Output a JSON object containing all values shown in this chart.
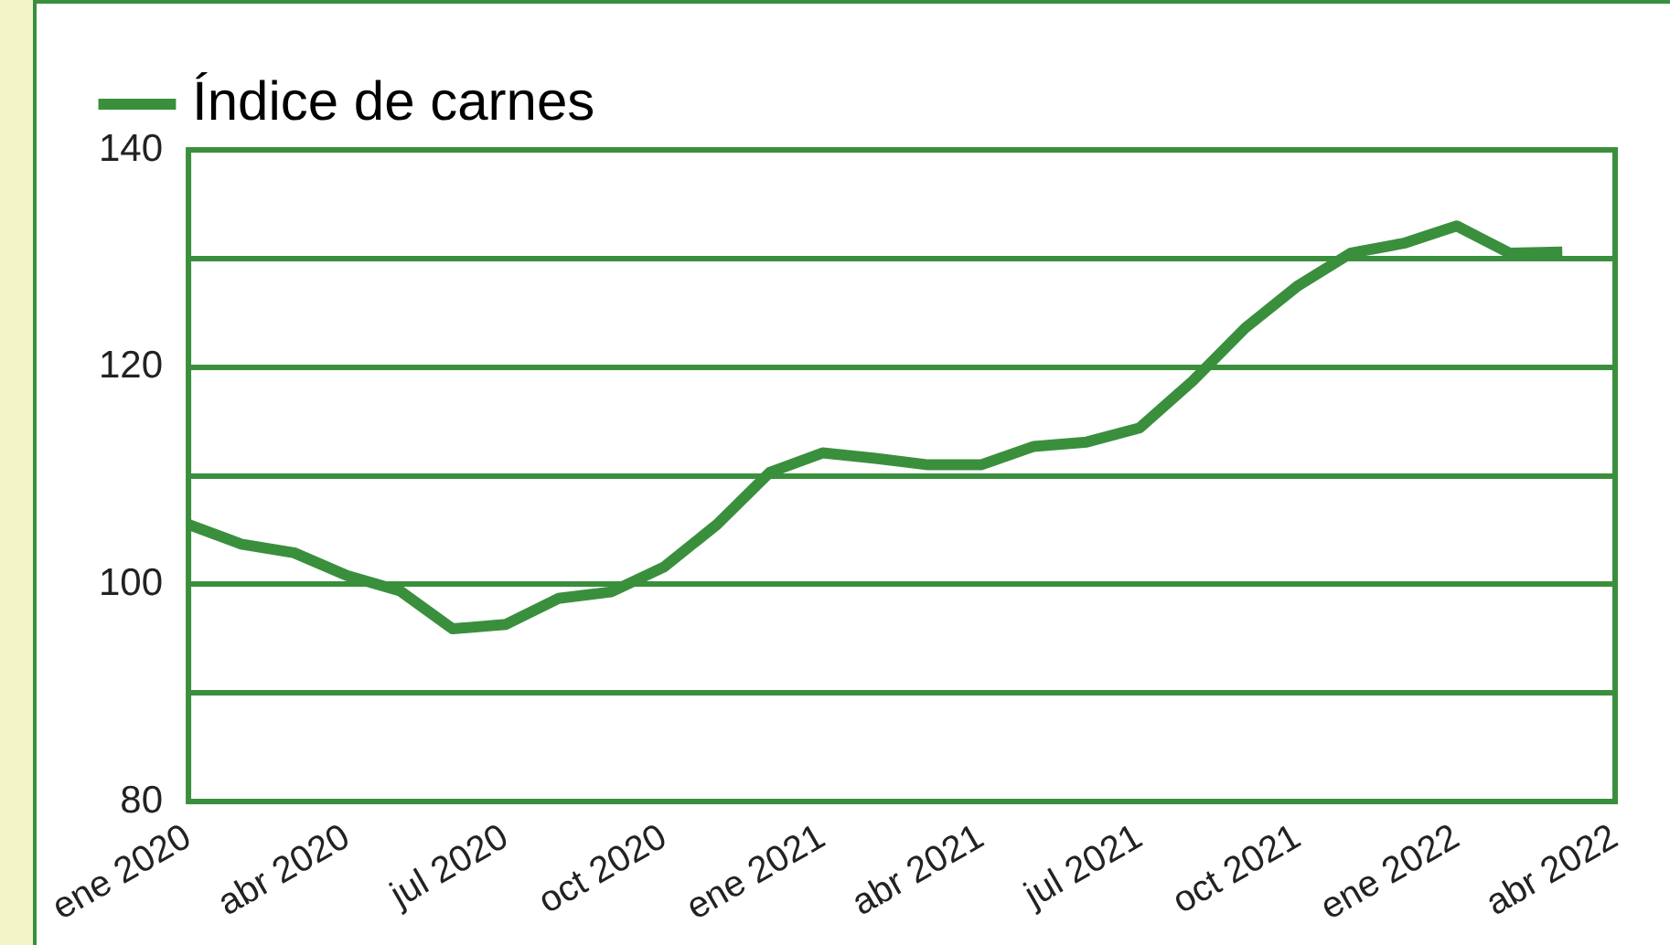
{
  "chart_data": {
    "type": "line",
    "categories": [
      "ene 2020",
      null,
      null,
      "abr 2020",
      null,
      null,
      "jul 2020",
      null,
      null,
      "oct 2020",
      null,
      null,
      "ene 2021",
      null,
      null,
      "abr 2021",
      null,
      null,
      "jul 2021",
      null,
      null,
      "oct 2021",
      null,
      null,
      "ene 2022",
      null,
      null,
      "abr 2022"
    ],
    "series": [
      {
        "name": "Índice de carnes",
        "color": "#3a8f3d",
        "values": [
          105.5,
          103.7,
          102.9,
          100.8,
          99.4,
          95.9,
          96.3,
          98.7,
          99.3,
          101.6,
          105.5,
          110.3,
          112.1,
          111.6,
          111.0,
          111.0,
          112.7,
          113.1,
          114.4,
          118.7,
          123.6,
          127.5,
          130.5,
          131.4,
          133.0,
          130.5,
          130.6,
          null
        ]
      }
    ],
    "ylim": [
      80,
      140
    ],
    "yticks": [
      80,
      {
        "value": 90,
        "label": null
      },
      100,
      {
        "value": 110,
        "label": null
      },
      120,
      {
        "value": 130,
        "label": null
      },
      140
    ],
    "grid": "y",
    "legend": "top left",
    "marker": "none",
    "line_style": "solid"
  }
}
